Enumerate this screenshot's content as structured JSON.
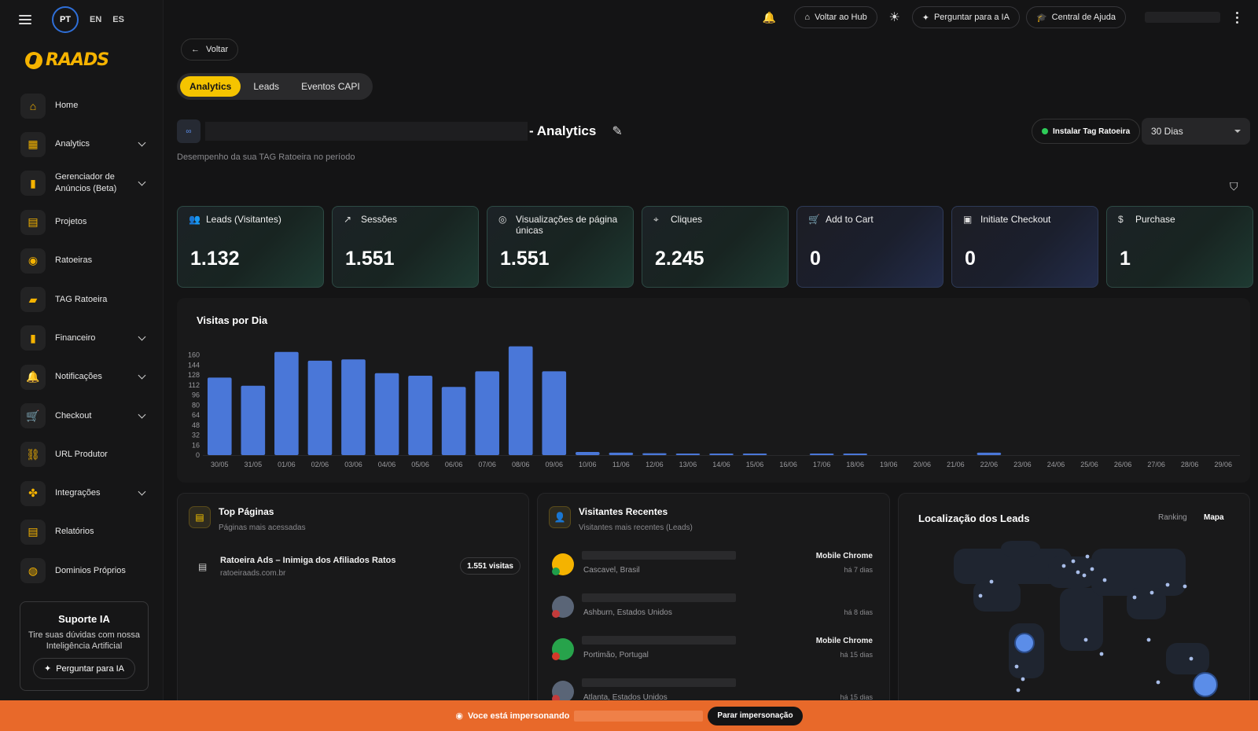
{
  "languages": [
    "PT",
    "EN",
    "ES"
  ],
  "active_language": "PT",
  "brand": {
    "name": "RAADS",
    "color": "#f5b300"
  },
  "sidebar": {
    "items": [
      {
        "label": "Home",
        "icon": "home-icon",
        "glyph": "⌂",
        "expandable": false
      },
      {
        "label": "Analytics",
        "icon": "grid-icon",
        "glyph": "▦",
        "expandable": true
      },
      {
        "label": "Gerenciador de Anúncios (Beta)",
        "icon": "bar-chart-icon",
        "glyph": "▮",
        "expandable": true
      },
      {
        "label": "Projetos",
        "icon": "clipboard-icon",
        "glyph": "▤",
        "expandable": false
      },
      {
        "label": "Ratoeiras",
        "icon": "trap-icon",
        "glyph": "◉",
        "expandable": false
      },
      {
        "label": "TAG Ratoeira",
        "icon": "tag-icon",
        "glyph": "▰",
        "expandable": false
      },
      {
        "label": "Financeiro",
        "icon": "finance-chart-icon",
        "glyph": "▮",
        "expandable": true
      },
      {
        "label": "Notificações",
        "icon": "bell-icon",
        "glyph": "🔔",
        "expandable": true
      },
      {
        "label": "Checkout",
        "icon": "cart-icon",
        "glyph": "🛒",
        "expandable": true
      },
      {
        "label": "URL Produtor",
        "icon": "link-icon",
        "glyph": "⛓",
        "expandable": false
      },
      {
        "label": "Integrações",
        "icon": "integration-icon",
        "glyph": "✤",
        "expandable": true
      },
      {
        "label": "Relatórios",
        "icon": "report-icon",
        "glyph": "▤",
        "expandable": false
      },
      {
        "label": "Dominios Próprios",
        "icon": "globe-icon",
        "glyph": "◍",
        "expandable": false
      }
    ]
  },
  "support": {
    "title": "Suporte IA",
    "text": "Tire suas dúvidas com nossa Inteligência Artificial",
    "button": "Perguntar para IA"
  },
  "topbar": {
    "hub": "Voltar ao Hub",
    "ask_ai": "Perguntar para a IA",
    "help": "Central de Ajuda"
  },
  "back": "Voltar",
  "tabs": [
    {
      "label": "Analytics",
      "active": true
    },
    {
      "label": "Leads",
      "active": false
    },
    {
      "label": "Eventos CAPI",
      "active": false
    }
  ],
  "page": {
    "title_suffix": "- Analytics",
    "subtitle": "Desempenho da sua TAG Ratoeira no período",
    "install_tag": "Instalar Tag Ratoeira",
    "period": "30 Dias"
  },
  "kpis": [
    {
      "label": "Leads (Visitantes)",
      "value": "1.132",
      "icon": "users-icon",
      "glyph": "👥",
      "tone": "green"
    },
    {
      "label": "Sessões",
      "value": "1.551",
      "icon": "trend-icon",
      "glyph": "↗",
      "tone": "green"
    },
    {
      "label": "Visualizações de página únicas",
      "value": "1.551",
      "icon": "eye-icon",
      "glyph": "◎",
      "tone": "green"
    },
    {
      "label": "Cliques",
      "value": "2.245",
      "icon": "click-icon",
      "glyph": "⌖",
      "tone": "green"
    },
    {
      "label": "Add to Cart",
      "value": "0",
      "icon": "cart-icon",
      "glyph": "🛒",
      "tone": "blue"
    },
    {
      "label": "Initiate Checkout",
      "value": "0",
      "icon": "checkout-icon",
      "glyph": "▣",
      "tone": "blue"
    },
    {
      "label": "Purchase",
      "value": "1",
      "icon": "dollar-icon",
      "glyph": "$",
      "tone": "green"
    }
  ],
  "chart_data": {
    "type": "bar",
    "title": "Visitas por Dia",
    "categories": [
      "30/05",
      "31/05",
      "01/06",
      "02/06",
      "03/06",
      "04/06",
      "05/06",
      "06/06",
      "07/06",
      "08/06",
      "09/06",
      "10/06",
      "11/06",
      "12/06",
      "13/06",
      "14/06",
      "15/06",
      "16/06",
      "17/06",
      "18/06",
      "19/06",
      "20/06",
      "21/06",
      "22/06",
      "23/06",
      "24/06",
      "25/06",
      "26/06",
      "27/06",
      "28/06",
      "29/06"
    ],
    "values": [
      124,
      111,
      165,
      151,
      153,
      131,
      127,
      109,
      134,
      174,
      134,
      5,
      4,
      3,
      1,
      2,
      1,
      0,
      1,
      2,
      0,
      0,
      0,
      4,
      0,
      0,
      0,
      0,
      0,
      0,
      0
    ],
    "yticks": [
      0,
      16,
      32,
      48,
      64,
      80,
      96,
      112,
      128,
      144,
      160
    ],
    "ylim": [
      0,
      176
    ],
    "bar_color": "#4a77d8"
  },
  "top_pages": {
    "title": "Top Páginas",
    "subtitle": "Páginas mais acessadas",
    "items": [
      {
        "name": "Ratoeira Ads – Inimiga dos Afiliados Ratos",
        "url": "ratoeiraads.com.br",
        "visits": "1.551 visitas"
      }
    ]
  },
  "recent_visitors": {
    "title": "Visitantes Recentes",
    "subtitle": "Visitantes mais recentes (Leads)",
    "items": [
      {
        "location": "Cascavel, Brasil",
        "device": "Mobile Chrome",
        "time": "há 7 dias",
        "avatar_color": "#f5b300",
        "flag_color": "#1f9d4a"
      },
      {
        "location": "Ashburn, Estados Unidos",
        "device": "",
        "time": "há 8 dias",
        "avatar_color": "#5a6577",
        "flag_color": "#c43b3b"
      },
      {
        "location": "Portimão, Portugal",
        "device": "Mobile Chrome",
        "time": "há 15 dias",
        "avatar_color": "#27a34b",
        "flag_color": "#d43a2a"
      },
      {
        "location": "Atlanta, Estados Unidos",
        "device": "",
        "time": "há 15 dias",
        "avatar_color": "#5a6577",
        "flag_color": "#c43b3b"
      }
    ]
  },
  "leads_map": {
    "title": "Localização dos Leads",
    "ranking": "Ranking",
    "map": "Mapa",
    "active": "Mapa"
  },
  "impersonation": {
    "text": "Voce está impersonando",
    "button": "Parar impersonação",
    "bar_color": "#e8692a"
  }
}
